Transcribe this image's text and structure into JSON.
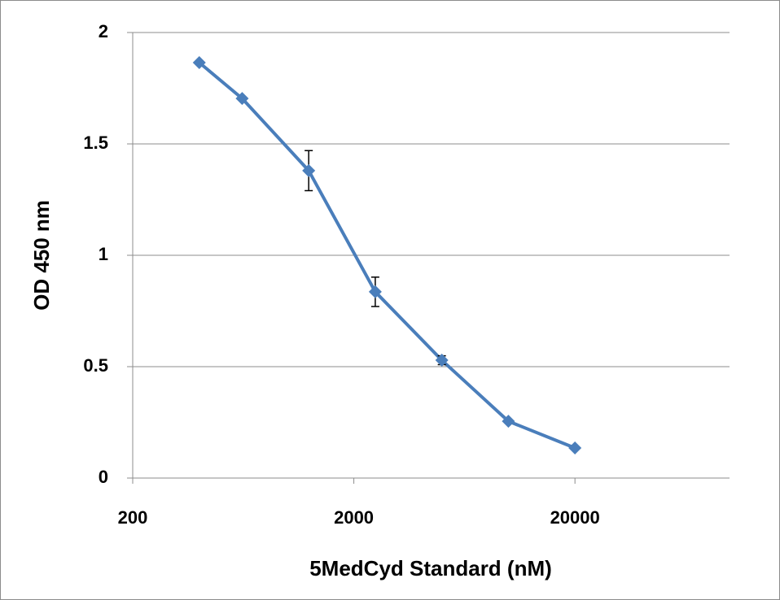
{
  "chart_data": {
    "type": "line",
    "x_label": "5MedCyd Standard (nM)",
    "y_label": "OD 450 nm",
    "x": [
      400,
      625,
      1250,
      2500,
      5000,
      10000,
      20000
    ],
    "series": [
      {
        "color": "#4a7ebb",
        "values": [
          1.865,
          1.704,
          1.38,
          0.836,
          0.529,
          0.255,
          0.135
        ],
        "errors": [
          null,
          null,
          0.09,
          0.066,
          0.02,
          null,
          null
        ]
      }
    ],
    "xscale": "log",
    "xlim": [
      200,
      100000
    ],
    "xticks": [
      200,
      2000,
      20000
    ],
    "ylim": [
      0,
      2
    ],
    "yticks": [
      0,
      0.5,
      1,
      1.5,
      2
    ],
    "grid": true
  }
}
